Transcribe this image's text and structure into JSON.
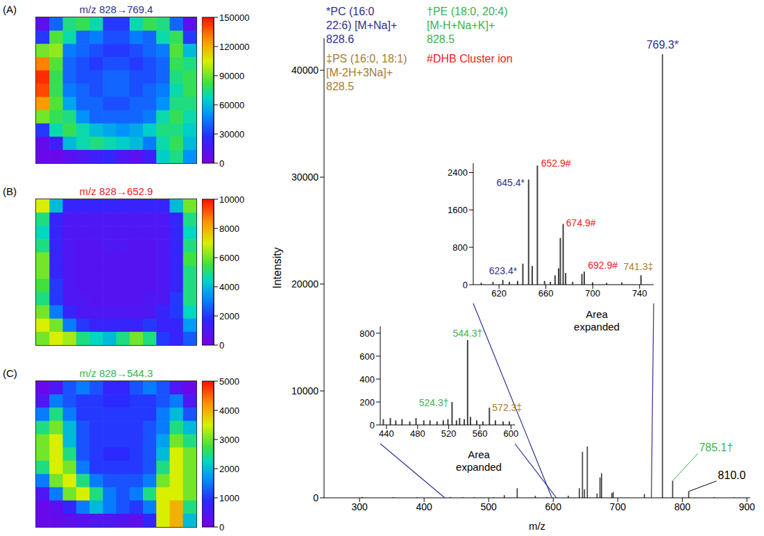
{
  "chart_data": [
    {
      "type": "heatmap",
      "title": "m/z 828→769.4",
      "color": "#2e3192",
      "label": "(A)",
      "tick_labels": false,
      "cells": [
        [
          10000,
          40000,
          75000,
          80000,
          70000,
          30000,
          30000,
          70000,
          80000,
          75000,
          40000,
          10000
        ],
        [
          30000,
          85000,
          70000,
          40000,
          45000,
          35000,
          35000,
          45000,
          40000,
          70000,
          80000,
          30000
        ],
        [
          90000,
          95000,
          45000,
          40000,
          35000,
          30000,
          30000,
          35000,
          40000,
          45000,
          85000,
          60000
        ],
        [
          130000,
          85000,
          40000,
          35000,
          30000,
          35000,
          35000,
          30000,
          35000,
          40000,
          80000,
          75000
        ],
        [
          145000,
          80000,
          40000,
          35000,
          35000,
          40000,
          40000,
          35000,
          35000,
          40000,
          75000,
          80000
        ],
        [
          140000,
          80000,
          45000,
          40000,
          35000,
          40000,
          40000,
          35000,
          40000,
          45000,
          70000,
          80000
        ],
        [
          125000,
          85000,
          55000,
          40000,
          40000,
          35000,
          35000,
          40000,
          40000,
          50000,
          75000,
          75000
        ],
        [
          90000,
          80000,
          75000,
          50000,
          40000,
          40000,
          40000,
          40000,
          45000,
          70000,
          80000,
          70000
        ],
        [
          30000,
          70000,
          80000,
          70000,
          60000,
          55000,
          50000,
          55000,
          65000,
          75000,
          75000,
          65000
        ],
        [
          8000,
          20000,
          60000,
          70000,
          75000,
          70000,
          65000,
          60000,
          45000,
          70000,
          80000,
          60000
        ],
        [
          5000,
          5000,
          10000,
          15000,
          20000,
          25000,
          15000,
          10000,
          20000,
          65000,
          75000,
          50000
        ]
      ],
      "colorbar": {
        "range": [
          0,
          150000
        ],
        "ticks": [
          0,
          30000,
          60000,
          90000,
          120000,
          150000
        ]
      }
    },
    {
      "type": "heatmap",
      "title": "m/z 828→652.9",
      "color": "#ed1c24",
      "label": "(B)",
      "tick_labels": false,
      "cells": [
        [
          7000,
          4000,
          1500,
          1500,
          1500,
          1500,
          1500,
          1500,
          1500,
          1500,
          4000,
          6000
        ],
        [
          5000,
          1500,
          1000,
          1000,
          1000,
          1000,
          1000,
          1000,
          1000,
          1000,
          1500,
          5000
        ],
        [
          4500,
          1500,
          1000,
          1000,
          1000,
          1000,
          1000,
          1000,
          1000,
          1000,
          1500,
          4500
        ],
        [
          5000,
          1500,
          1000,
          800,
          800,
          1000,
          1000,
          800,
          800,
          1000,
          1500,
          5000
        ],
        [
          6000,
          1500,
          1000,
          800,
          800,
          800,
          800,
          800,
          800,
          1000,
          1500,
          5500
        ],
        [
          6000,
          1500,
          1000,
          800,
          800,
          800,
          800,
          800,
          800,
          1000,
          1500,
          5000
        ],
        [
          5500,
          2000,
          1000,
          800,
          800,
          800,
          800,
          800,
          800,
          1000,
          1500,
          5000
        ],
        [
          5000,
          2000,
          1000,
          1000,
          800,
          800,
          800,
          800,
          1000,
          1000,
          2000,
          5000
        ],
        [
          6000,
          3000,
          1500,
          1000,
          1000,
          1000,
          1000,
          1000,
          1000,
          1500,
          2000,
          4500
        ],
        [
          7000,
          6000,
          3000,
          2000,
          1500,
          1500,
          1500,
          1500,
          2000,
          1500,
          1500,
          3500
        ],
        [
          6000,
          7000,
          6500,
          5000,
          4500,
          4000,
          5000,
          6000,
          5000,
          2000,
          1500,
          2500
        ]
      ],
      "colorbar": {
        "range": [
          0,
          10000
        ],
        "ticks": [
          0,
          2000,
          4000,
          6000,
          8000,
          10000
        ]
      }
    },
    {
      "type": "heatmap",
      "title": "m/z 828→544.3",
      "color": "#39b54a",
      "label": "(C)",
      "tick_labels": false,
      "cells": [
        [
          200,
          500,
          1200,
          1500,
          1200,
          800,
          800,
          1200,
          1500,
          1200,
          500,
          200
        ],
        [
          500,
          1500,
          1200,
          1000,
          1000,
          900,
          900,
          1000,
          1000,
          1200,
          1500,
          500
        ],
        [
          1500,
          2500,
          1500,
          1000,
          1000,
          1000,
          1000,
          1000,
          1000,
          1500,
          2000,
          1200
        ],
        [
          2500,
          3000,
          2000,
          1200,
          1000,
          1000,
          1000,
          1000,
          1200,
          1500,
          2500,
          2000
        ],
        [
          3000,
          3500,
          2000,
          1200,
          1000,
          1000,
          1000,
          1000,
          1200,
          1800,
          3000,
          2500
        ],
        [
          3000,
          3500,
          2500,
          1200,
          1000,
          900,
          900,
          1000,
          1200,
          2000,
          3500,
          3000
        ],
        [
          2500,
          3500,
          3000,
          1500,
          1000,
          1000,
          1000,
          1000,
          1200,
          2500,
          3500,
          3000
        ],
        [
          1500,
          3000,
          3500,
          2500,
          1500,
          1200,
          1200,
          1200,
          1500,
          3000,
          3500,
          3000
        ],
        [
          500,
          1500,
          3000,
          3500,
          2500,
          1500,
          1200,
          1500,
          2500,
          3500,
          3500,
          3000
        ],
        [
          200,
          300,
          800,
          1500,
          2000,
          1500,
          1200,
          1000,
          1500,
          3500,
          4000,
          2500
        ],
        [
          200,
          200,
          300,
          400,
          500,
          500,
          400,
          300,
          800,
          3500,
          4000,
          2000
        ]
      ],
      "colorbar": {
        "range": [
          0,
          5000
        ],
        "ticks": [
          0,
          1000,
          2000,
          3000,
          4000,
          5000
        ]
      }
    },
    {
      "type": "bar",
      "xlabel": "m/z",
      "ylabel": "Intensity",
      "color": "#404040",
      "x": [
        304,
        352,
        389,
        441,
        460,
        478,
        508,
        524.3,
        544.3,
        572.3,
        590,
        623.4,
        640.5,
        645.4,
        648.5,
        652.9,
        668,
        672.5,
        674.9,
        690.9,
        692.9,
        741.3,
        769.3,
        785.1,
        810.0,
        850,
        880
      ],
      "values": [
        80,
        60,
        70,
        80,
        60,
        60,
        70,
        250,
        900,
        180,
        60,
        200,
        900,
        4300,
        800,
        4800,
        400,
        1900,
        2300,
        450,
        550,
        350,
        41500,
        1600,
        600,
        60,
        50
      ],
      "xlim": [
        245,
        905
      ],
      "xticks": [
        300,
        400,
        500,
        600,
        700,
        800,
        900
      ],
      "ylim": [
        0,
        43000
      ],
      "yticks": [
        0,
        10000,
        20000,
        30000,
        40000
      ],
      "peak_labels": [
        {
          "x": 769.3,
          "label": "769.3*",
          "color": "#2e3192"
        },
        {
          "x": 785.1,
          "label": "785.1†",
          "color": "#39b54a"
        },
        {
          "x": 810.0,
          "label": "810.0",
          "color": "#000000"
        }
      ],
      "annotations": [
        {
          "lines": [
            "*PC (16:0",
            "22:6) [M+Na]+",
            "828.6"
          ],
          "color": "#2e3192"
        },
        {
          "lines": [
            "†PE (18:0, 20:4)",
            "[M-H+Na+K]+",
            "828.5"
          ],
          "color": "#39b54a"
        },
        {
          "lines": [
            "‡PS (16:0, 18:1)",
            "[M-2H+3Na]+",
            "828.5"
          ],
          "color": "#a67c32"
        },
        {
          "lines": [
            "#DHB Cluster ion"
          ],
          "color": "#ed1c24"
        }
      ],
      "insets": [
        {
          "type": "bar",
          "color": "#404040",
          "annotation": "Area expanded",
          "x": [
            605,
            615,
            623.4,
            629,
            636,
            640.5,
            645.4,
            648.5,
            652.9,
            659,
            664,
            668,
            671,
            672.5,
            674.9,
            677,
            683,
            690.9,
            692.9,
            700,
            712,
            725,
            741.3
          ],
          "values": [
            40,
            60,
            100,
            60,
            80,
            450,
            2250,
            400,
            2550,
            80,
            60,
            200,
            350,
            1000,
            1300,
            250,
            60,
            230,
            280,
            50,
            40,
            50,
            200
          ],
          "xlim": [
            598,
            752
          ],
          "xticks": [
            620,
            660,
            700,
            740
          ],
          "ylim": [
            0,
            2600
          ],
          "yticks": [
            0,
            800,
            1600,
            2400
          ],
          "peak_labels": [
            {
              "x": 623.4,
              "label": "623.4*",
              "color": "#2e3192"
            },
            {
              "x": 645.4,
              "label": "645.4*",
              "color": "#2e3192"
            },
            {
              "x": 652.9,
              "label": "652.9#",
              "color": "#ed1c24"
            },
            {
              "x": 674.9,
              "label": "674.9#",
              "color": "#ed1c24"
            },
            {
              "x": 692.9,
              "label": "692.9#",
              "color": "#ed1c24"
            },
            {
              "x": 741.3,
              "label": "741.3‡",
              "color": "#a67c32"
            }
          ]
        },
        {
          "type": "bar",
          "color": "#404040",
          "annotation": "Area expanded",
          "x": [
            436,
            445,
            452,
            460,
            470,
            478,
            488,
            496,
            505,
            513,
            519,
            524.3,
            530,
            534,
            540,
            544.3,
            548,
            556,
            564,
            572.3,
            580,
            590,
            598
          ],
          "values": [
            50,
            60,
            40,
            50,
            30,
            60,
            40,
            40,
            30,
            40,
            50,
            200,
            40,
            60,
            50,
            740,
            70,
            40,
            30,
            150,
            40,
            30,
            30
          ],
          "xlim": [
            432,
            605
          ],
          "xticks": [
            440,
            480,
            520,
            560,
            600
          ],
          "ylim": [
            0,
            860
          ],
          "yticks": [
            0,
            200,
            400,
            600,
            800
          ],
          "peak_labels": [
            {
              "x": 524.3,
              "label": "524.3†",
              "color": "#39b54a"
            },
            {
              "x": 544.3,
              "label": "544.3†",
              "color": "#39b54a"
            },
            {
              "x": 572.3,
              "label": "572.3‡",
              "color": "#a67c32"
            }
          ]
        }
      ]
    }
  ]
}
